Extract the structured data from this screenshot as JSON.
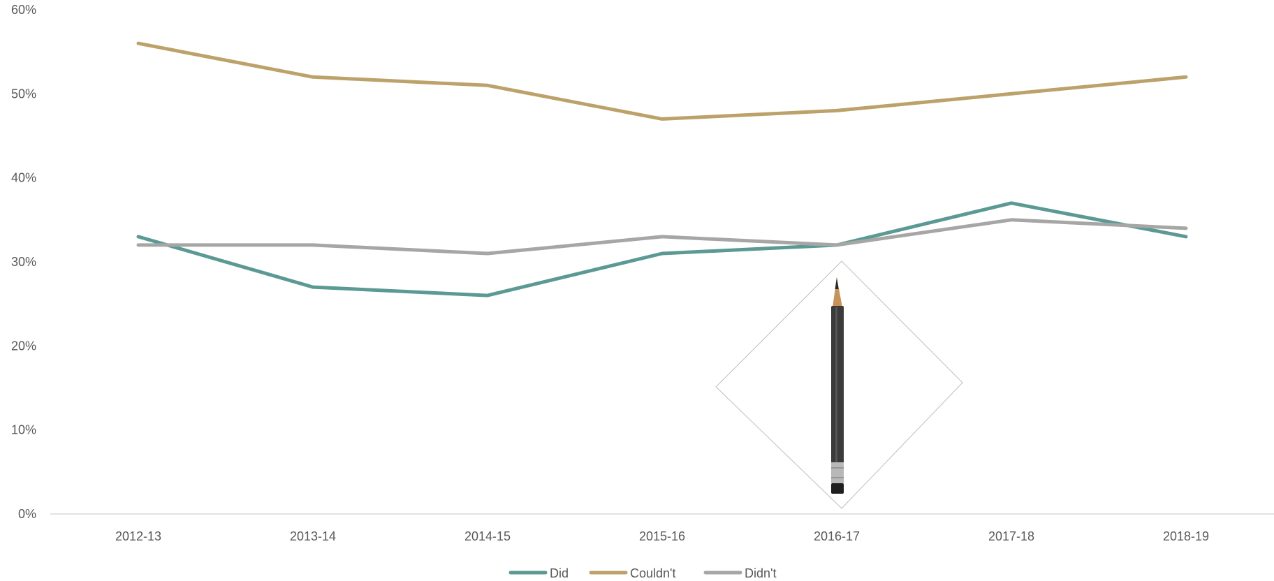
{
  "chart_data": {
    "type": "line",
    "categories": [
      "2012-13",
      "2013-14",
      "2014-15",
      "2015-16",
      "2016-17",
      "2017-18",
      "2018-19"
    ],
    "series": [
      {
        "name": "Did",
        "color": "#5B9A94",
        "values": [
          33,
          27,
          26,
          31,
          32,
          37,
          33
        ]
      },
      {
        "name": "Couldn't",
        "color": "#BCA26A",
        "values": [
          56,
          52,
          51,
          47,
          48,
          50,
          52
        ]
      },
      {
        "name": "Didn't",
        "color": "#A6A6A6",
        "values": [
          32,
          32,
          31,
          33,
          32,
          35,
          34
        ]
      }
    ],
    "yticks": [
      "0%",
      "10%",
      "20%",
      "30%",
      "40%",
      "50%",
      "60%"
    ],
    "ylim": [
      0,
      60
    ],
    "grid": false,
    "legend_position": "bottom-center",
    "overlay_image": "pencil-icon"
  }
}
